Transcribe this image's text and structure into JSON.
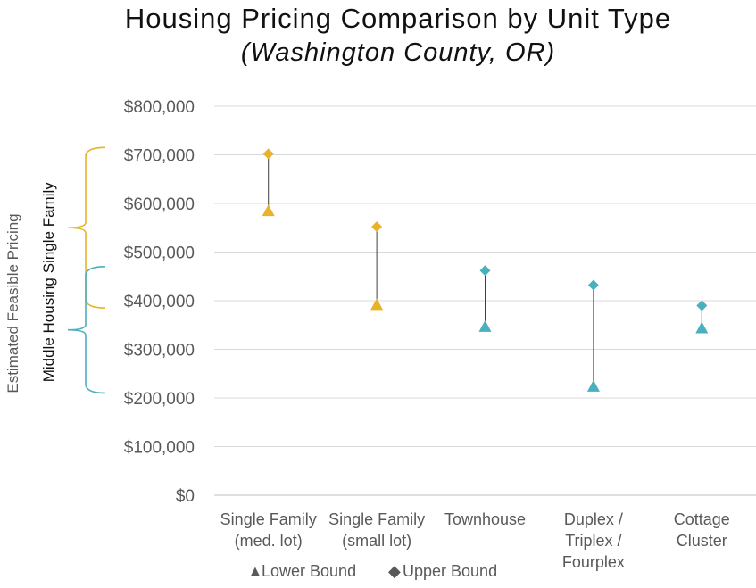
{
  "chart_data": {
    "type": "scatter",
    "title": "Housing Pricing Comparison by Unit Type",
    "subtitle": "(Washington County, OR)",
    "ylabel": "Estimated Feasible Pricing",
    "ylim": [
      0,
      800000
    ],
    "yticks": [
      0,
      100000,
      200000,
      300000,
      400000,
      500000,
      600000,
      700000,
      800000
    ],
    "ytick_labels": [
      "$0",
      "$100,000",
      "$200,000",
      "$300,000",
      "$400,000",
      "$500,000",
      "$600,000",
      "$700,000",
      "$800,000"
    ],
    "grid": true,
    "categories": [
      {
        "lines": [
          "Single Family",
          "(med. lot)"
        ]
      },
      {
        "lines": [
          "Single Family",
          "(small lot)"
        ]
      },
      {
        "lines": [
          "Townhouse"
        ]
      },
      {
        "lines": [
          "Duplex /",
          "Triplex /",
          "Fourplex"
        ]
      },
      {
        "lines": [
          "Cottage",
          "Cluster"
        ]
      }
    ],
    "series": [
      {
        "name": "Lower Bound",
        "marker": "triangle",
        "values": [
          585000,
          392000,
          347000,
          224000,
          344000
        ]
      },
      {
        "name": "Upper Bound",
        "marker": "diamond",
        "values": [
          702000,
          552000,
          462000,
          432000,
          390000
        ]
      }
    ],
    "point_colors": [
      "#E8B229",
      "#E8B229",
      "#4AAFBE",
      "#4AAFBE",
      "#4AAFBE"
    ],
    "legend": {
      "position": "bottom",
      "items": [
        {
          "symbol": "▲",
          "label": "Lower Bound"
        },
        {
          "symbol": "◆",
          "label": "Upper Bound"
        }
      ]
    },
    "brackets": [
      {
        "label": "Single Family",
        "range": [
          385000,
          715000
        ],
        "color": "#E8B229"
      },
      {
        "label": "Middle Housing",
        "range": [
          210000,
          470000
        ],
        "color": "#4AAFBE"
      }
    ]
  }
}
